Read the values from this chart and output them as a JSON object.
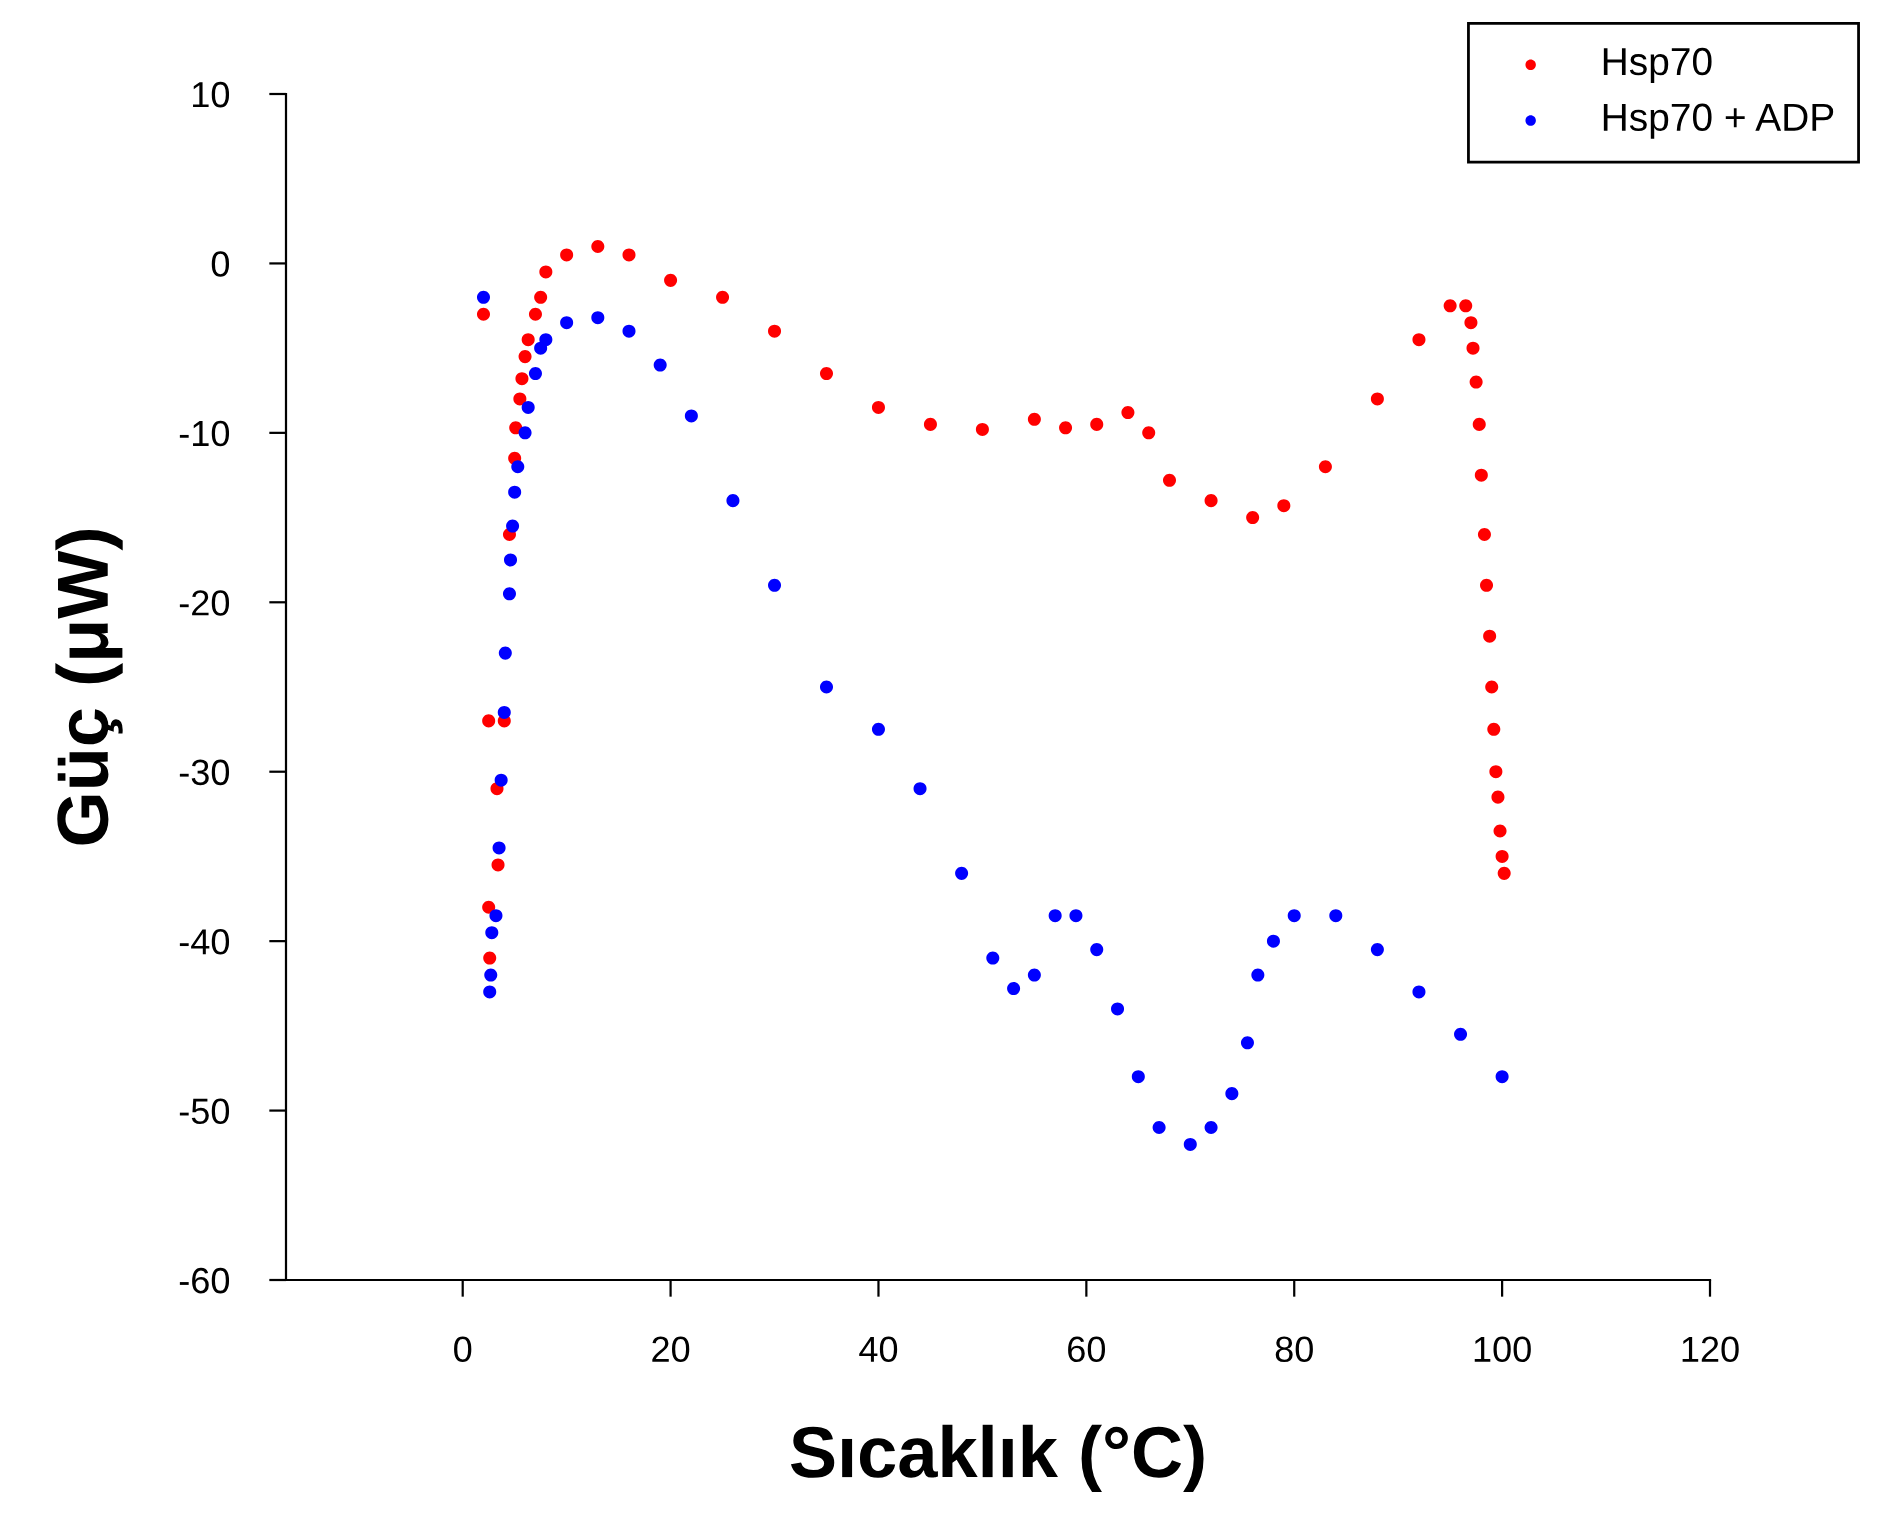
{
  "chart_data": {
    "type": "scatter",
    "xlabel": "Sıcaklık (°C)",
    "ylabel": "Güç (μW)",
    "xlim": [
      -17,
      120
    ],
    "ylim": [
      -60,
      10
    ],
    "xticks": [
      0,
      20,
      40,
      60,
      80,
      100,
      120
    ],
    "yticks": [
      -60,
      -50,
      -40,
      -30,
      -20,
      -10,
      0,
      10
    ],
    "legend": "top right",
    "marker": "circle",
    "grid": false,
    "series": [
      {
        "name": "Hsp70",
        "color": "#ff0000",
        "x": [
          2,
          2.5,
          2.5,
          2.6,
          3.3,
          3.4,
          4,
          4.5,
          5,
          5.1,
          5.5,
          5.7,
          6,
          6.3,
          7,
          7.5,
          8,
          10,
          13,
          16,
          20,
          25,
          30,
          35,
          40,
          45,
          50,
          55,
          58,
          61,
          64,
          66,
          68,
          72,
          76,
          79,
          83,
          88,
          92,
          95,
          96.5,
          97,
          97.2,
          97.5,
          97.8,
          98,
          98.3,
          98.5,
          98.8,
          99,
          99.2,
          99.4,
          99.6,
          99.8,
          100,
          100.2
        ],
        "values": [
          -3,
          -27,
          -38,
          -41,
          -31,
          -35.5,
          -27,
          -16,
          -11.5,
          -9.7,
          -8,
          -6.8,
          -5.5,
          -4.5,
          -3,
          -2,
          -0.5,
          0.5,
          1,
          0.5,
          -1,
          -2,
          -4,
          -6.5,
          -8.5,
          -9.5,
          -9.8,
          -9.2,
          -9.7,
          -9.5,
          -8.8,
          -10,
          -12.8,
          -14,
          -15,
          -14.3,
          -12,
          -8,
          -4.5,
          -2.5,
          -2.5,
          -3.5,
          -5,
          -7,
          -9.5,
          -12.5,
          -16,
          -19,
          -22,
          -25,
          -27.5,
          -30,
          -31.5,
          -33.5,
          -35,
          -36
        ]
      },
      {
        "name": "Hsp70 + ADP",
        "color": "#0000ff",
        "x": [
          2,
          2.6,
          2.7,
          2.8,
          3.2,
          3.5,
          3.7,
          4,
          4.1,
          4.5,
          4.6,
          4.8,
          5,
          5.3,
          6,
          6.3,
          7,
          7.5,
          8,
          10,
          13,
          16,
          19,
          22,
          26,
          30,
          35,
          40,
          44,
          48,
          51,
          53,
          55,
          57,
          59,
          61,
          63,
          65,
          67,
          70,
          72,
          74,
          75.5,
          76.5,
          78,
          80,
          84,
          88,
          92,
          96,
          100
        ],
        "values": [
          -2,
          -43,
          -42,
          -39.5,
          -38.5,
          -34.5,
          -30.5,
          -26.5,
          -23,
          -19.5,
          -17.5,
          -15.5,
          -13.5,
          -12,
          -10,
          -8.5,
          -6.5,
          -5,
          -4.5,
          -3.5,
          -3.2,
          -4,
          -6,
          -9,
          -14,
          -19,
          -25,
          -27.5,
          -31,
          -36,
          -41,
          -42.8,
          -42,
          -38.5,
          -38.5,
          -40.5,
          -44,
          -48,
          -51,
          -52,
          -51,
          -49,
          -46,
          -42,
          -40,
          -38.5,
          -38.5,
          -40.5,
          -43,
          -45.5,
          -48
        ]
      }
    ]
  }
}
